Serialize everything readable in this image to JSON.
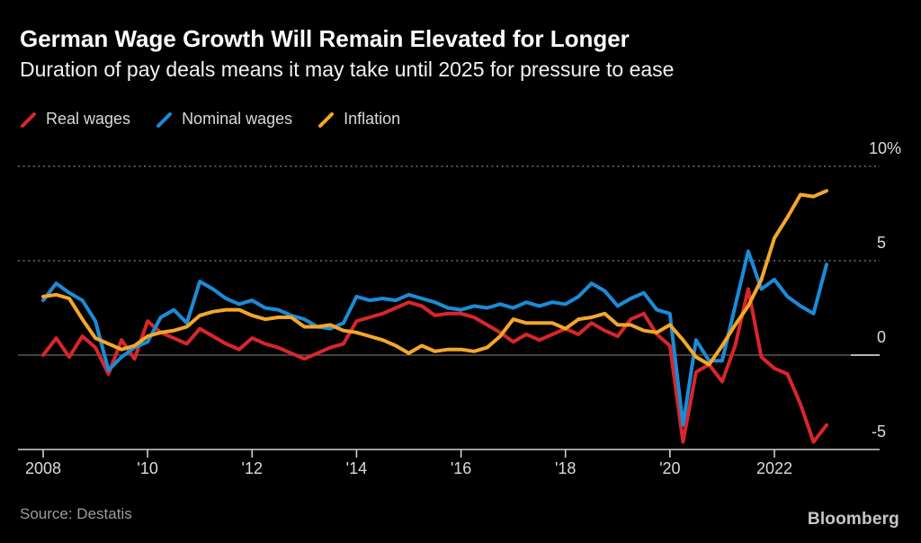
{
  "header": {
    "title": "German Wage Growth Will Remain Elevated for Longer",
    "subtitle": "Duration of pay deals means it may take until 2025 for pressure to ease"
  },
  "footer": {
    "source": "Source: Destatis",
    "brand": "Bloomberg"
  },
  "colors": {
    "background": "#000000",
    "real_wages": "#D8262C",
    "nominal_wages": "#1A8CD8",
    "inflation": "#F3A72B",
    "grid_dotted": "#858585",
    "zero_line": "#595959",
    "axis_line": "#CFCFCF",
    "tick_label": "#DBDBDB"
  },
  "chart_data": {
    "type": "line",
    "title": "German Wage Growth Will Remain Elevated for Longer",
    "subtitle": "Duration of pay deals means it may take until 2025 for pressure to ease",
    "x_unit": "quarterly, year-over-year % change",
    "x_start": 2008.0,
    "x_end": 2023.0,
    "x_step": 0.25,
    "ylim": [
      -5,
      10
    ],
    "grid": "horizontal-only",
    "legend_position": "top-left",
    "x_ticks": [
      {
        "t": 2008,
        "label": "2008"
      },
      {
        "t": 2010,
        "label": "'10"
      },
      {
        "t": 2012,
        "label": "'12"
      },
      {
        "t": 2014,
        "label": "'14"
      },
      {
        "t": 2016,
        "label": "'16"
      },
      {
        "t": 2018,
        "label": "'18"
      },
      {
        "t": 2020,
        "label": "'20"
      },
      {
        "t": 2022,
        "label": "2022"
      }
    ],
    "y_ticks": [
      {
        "v": 10,
        "label": "10%",
        "grid": "dotted"
      },
      {
        "v": 5,
        "label": "5",
        "grid": "dotted"
      },
      {
        "v": 0,
        "label": "0",
        "grid": "zero"
      },
      {
        "v": -5,
        "label": "-5",
        "grid": "axis"
      }
    ],
    "series": [
      {
        "name": "Real wages",
        "color": "#D8262C",
        "values": [
          0.0,
          0.9,
          -0.1,
          1.0,
          0.4,
          -1.0,
          0.8,
          -0.2,
          1.8,
          1.2,
          0.9,
          0.6,
          1.4,
          1.0,
          0.6,
          0.3,
          0.9,
          0.6,
          0.4,
          0.1,
          -0.2,
          0.1,
          0.4,
          0.6,
          1.8,
          2.0,
          2.2,
          2.5,
          2.8,
          2.6,
          2.1,
          2.2,
          2.2,
          2.0,
          1.6,
          1.2,
          0.7,
          1.1,
          0.8,
          1.1,
          1.4,
          1.1,
          1.7,
          1.3,
          1.0,
          1.9,
          2.2,
          1.1,
          0.5,
          -4.6,
          -0.9,
          -0.5,
          -1.4,
          0.5,
          3.5,
          -0.1,
          -0.7,
          -1.0,
          -2.6,
          -4.6,
          -3.7
        ]
      },
      {
        "name": "Nominal wages",
        "color": "#1A8CD8",
        "values": [
          2.9,
          3.8,
          3.3,
          2.9,
          1.8,
          -0.8,
          -0.1,
          0.4,
          0.7,
          2.0,
          2.4,
          1.7,
          3.9,
          3.5,
          3.0,
          2.7,
          2.9,
          2.5,
          2.4,
          2.1,
          1.9,
          1.5,
          1.4,
          1.7,
          3.1,
          2.9,
          3.0,
          2.9,
          3.2,
          3.0,
          2.8,
          2.5,
          2.4,
          2.6,
          2.5,
          2.7,
          2.5,
          2.8,
          2.6,
          2.8,
          2.7,
          3.1,
          3.8,
          3.4,
          2.6,
          3.0,
          3.3,
          2.4,
          2.2,
          -3.7,
          0.8,
          -0.3,
          -0.3,
          2.6,
          5.5,
          3.5,
          4.0,
          3.1,
          2.6,
          2.2,
          4.8
        ]
      },
      {
        "name": "Inflation",
        "color": "#F3A72B",
        "values": [
          3.1,
          3.2,
          3.0,
          1.9,
          0.9,
          0.6,
          0.3,
          0.5,
          1.0,
          1.2,
          1.3,
          1.5,
          2.1,
          2.3,
          2.4,
          2.4,
          2.1,
          1.9,
          2.0,
          2.0,
          1.5,
          1.5,
          1.6,
          1.3,
          1.2,
          1.0,
          0.8,
          0.5,
          0.1,
          0.5,
          0.2,
          0.3,
          0.3,
          0.2,
          0.4,
          1.0,
          1.9,
          1.7,
          1.7,
          1.7,
          1.4,
          1.9,
          2.0,
          2.2,
          1.6,
          1.6,
          1.3,
          1.2,
          1.6,
          0.8,
          -0.1,
          -0.5,
          0.5,
          1.6,
          2.6,
          4.0,
          6.2,
          7.3,
          8.5,
          8.4,
          8.7
        ]
      }
    ]
  }
}
